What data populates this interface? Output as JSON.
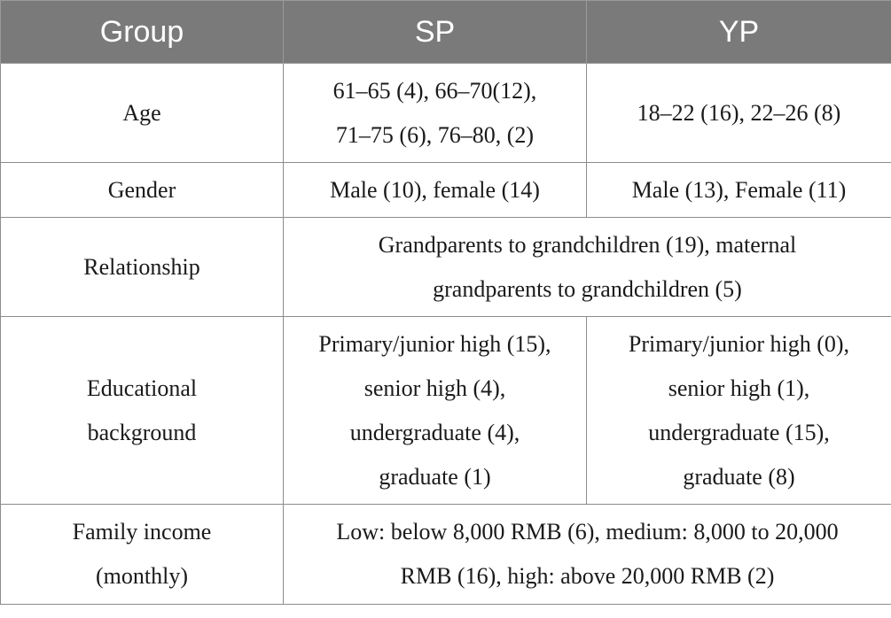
{
  "header": {
    "group": "Group",
    "sp": "SP",
    "yp": "YP"
  },
  "rows": {
    "age": {
      "label": "Age",
      "sp": [
        "61–65 (4), 66–70(12),",
        "71–75 (6), 76–80, (2)"
      ],
      "yp": "18–22 (16), 22–26 (8)"
    },
    "gender": {
      "label": "Gender",
      "sp": "Male (10), female (14)",
      "yp": "Male (13), Female (11)"
    },
    "relationship": {
      "label": "Relationship",
      "combined": [
        "Grandparents to grandchildren (19), maternal",
        "grandparents to grandchildren (5)"
      ]
    },
    "education": {
      "label": [
        "Educational",
        "background"
      ],
      "sp": [
        "Primary/junior high (15),",
        "senior high (4),",
        "undergraduate (4),",
        "graduate (1)"
      ],
      "yp": [
        "Primary/junior high (0),",
        "senior high (1),",
        "undergraduate (15),",
        "graduate (8)"
      ]
    },
    "income": {
      "label": [
        "Family income",
        "(monthly)"
      ],
      "combined": [
        "Low: below 8,000 RMB (6), medium: 8,000 to 20,000",
        "RMB (16), high: above 20,000 RMB (2)"
      ]
    }
  }
}
